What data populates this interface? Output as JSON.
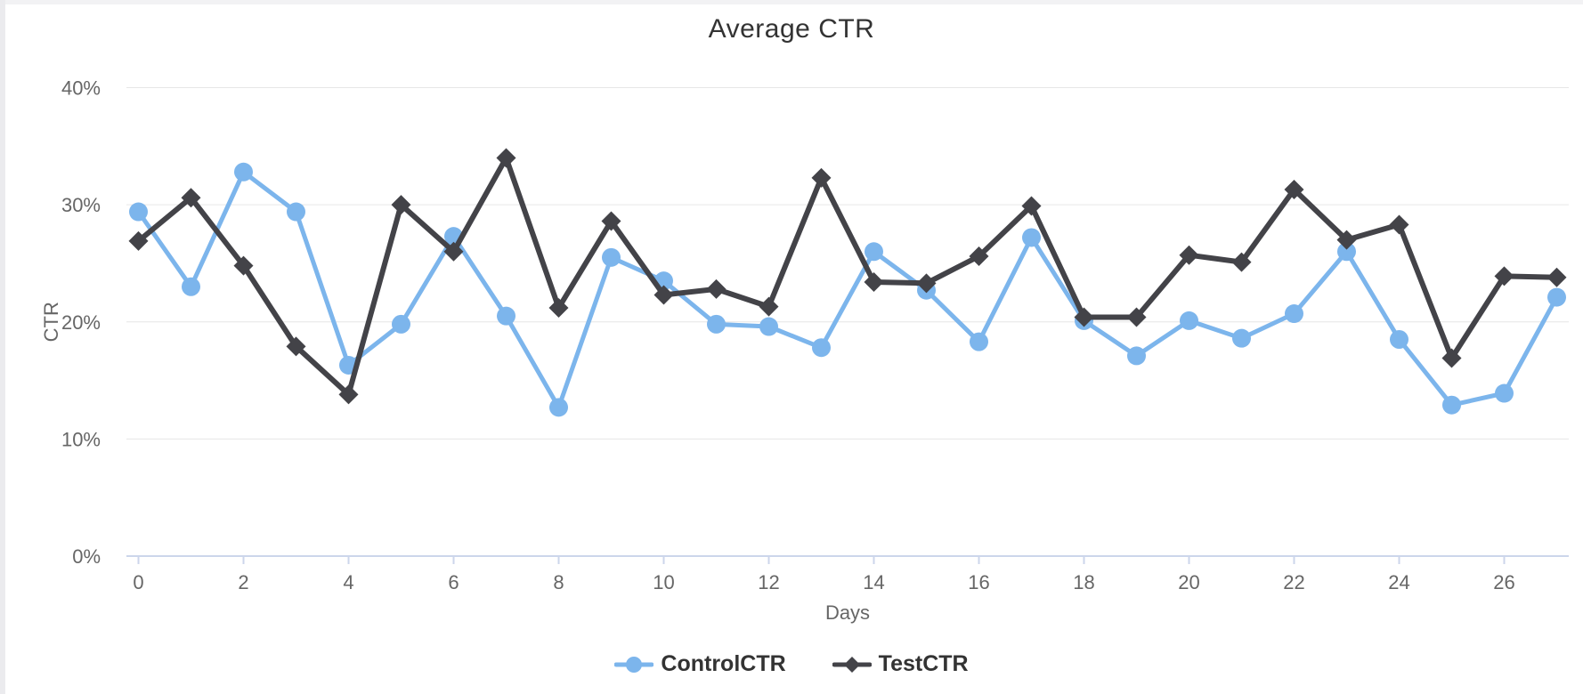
{
  "title": "Average CTR",
  "x_axis": {
    "title": "Days"
  },
  "y_axis": {
    "title": "CTR",
    "tick_labels": [
      "0%",
      "10%",
      "20%",
      "30%",
      "40%"
    ]
  },
  "legend": [
    {
      "label": "ControlCTR",
      "color": "#7cb5ec",
      "marker": "circle"
    },
    {
      "label": "TestCTR",
      "color": "#434348",
      "marker": "diamond"
    }
  ],
  "colors": {
    "control_series": "#7cb5ec",
    "test_series": "#434348",
    "gridline": "#e6e6e6",
    "axis_line": "#ccd6eb",
    "tick_label": "#666666",
    "title_text": "#333333",
    "legend_text": "#333333"
  },
  "chart_data": {
    "type": "line",
    "title": "Average CTR",
    "xlabel": "Days",
    "ylabel": "CTR",
    "ylim": [
      0,
      40
    ],
    "xticks": [
      0,
      2,
      4,
      6,
      8,
      10,
      12,
      14,
      16,
      18,
      20,
      22,
      24,
      26
    ],
    "yticks": [
      0,
      10,
      20,
      30,
      40
    ],
    "grid": "horizontal",
    "legend_position": "bottom-center",
    "x": [
      0,
      1,
      2,
      3,
      4,
      5,
      6,
      7,
      8,
      9,
      10,
      11,
      12,
      13,
      14,
      15,
      16,
      17,
      18,
      19,
      20,
      21,
      22,
      23,
      24,
      25,
      26,
      27
    ],
    "series": [
      {
        "name": "ControlCTR",
        "color": "#7cb5ec",
        "marker": "circle",
        "values": [
          29.4,
          23.0,
          32.8,
          29.4,
          16.3,
          19.8,
          27.3,
          20.5,
          12.7,
          25.5,
          23.5,
          19.8,
          19.6,
          17.8,
          26.0,
          22.7,
          18.3,
          27.2,
          20.1,
          17.1,
          20.1,
          18.6,
          20.7,
          26.0,
          18.5,
          12.9,
          13.9,
          22.1
        ]
      },
      {
        "name": "TestCTR",
        "color": "#434348",
        "marker": "diamond",
        "values": [
          26.9,
          30.6,
          24.8,
          17.9,
          13.8,
          30.0,
          26.0,
          34.0,
          21.2,
          28.6,
          22.3,
          22.8,
          21.3,
          32.3,
          23.4,
          23.3,
          25.6,
          29.9,
          20.4,
          20.4,
          25.7,
          25.1,
          31.3,
          27.0,
          28.3,
          16.9,
          23.9,
          23.8
        ]
      }
    ]
  }
}
